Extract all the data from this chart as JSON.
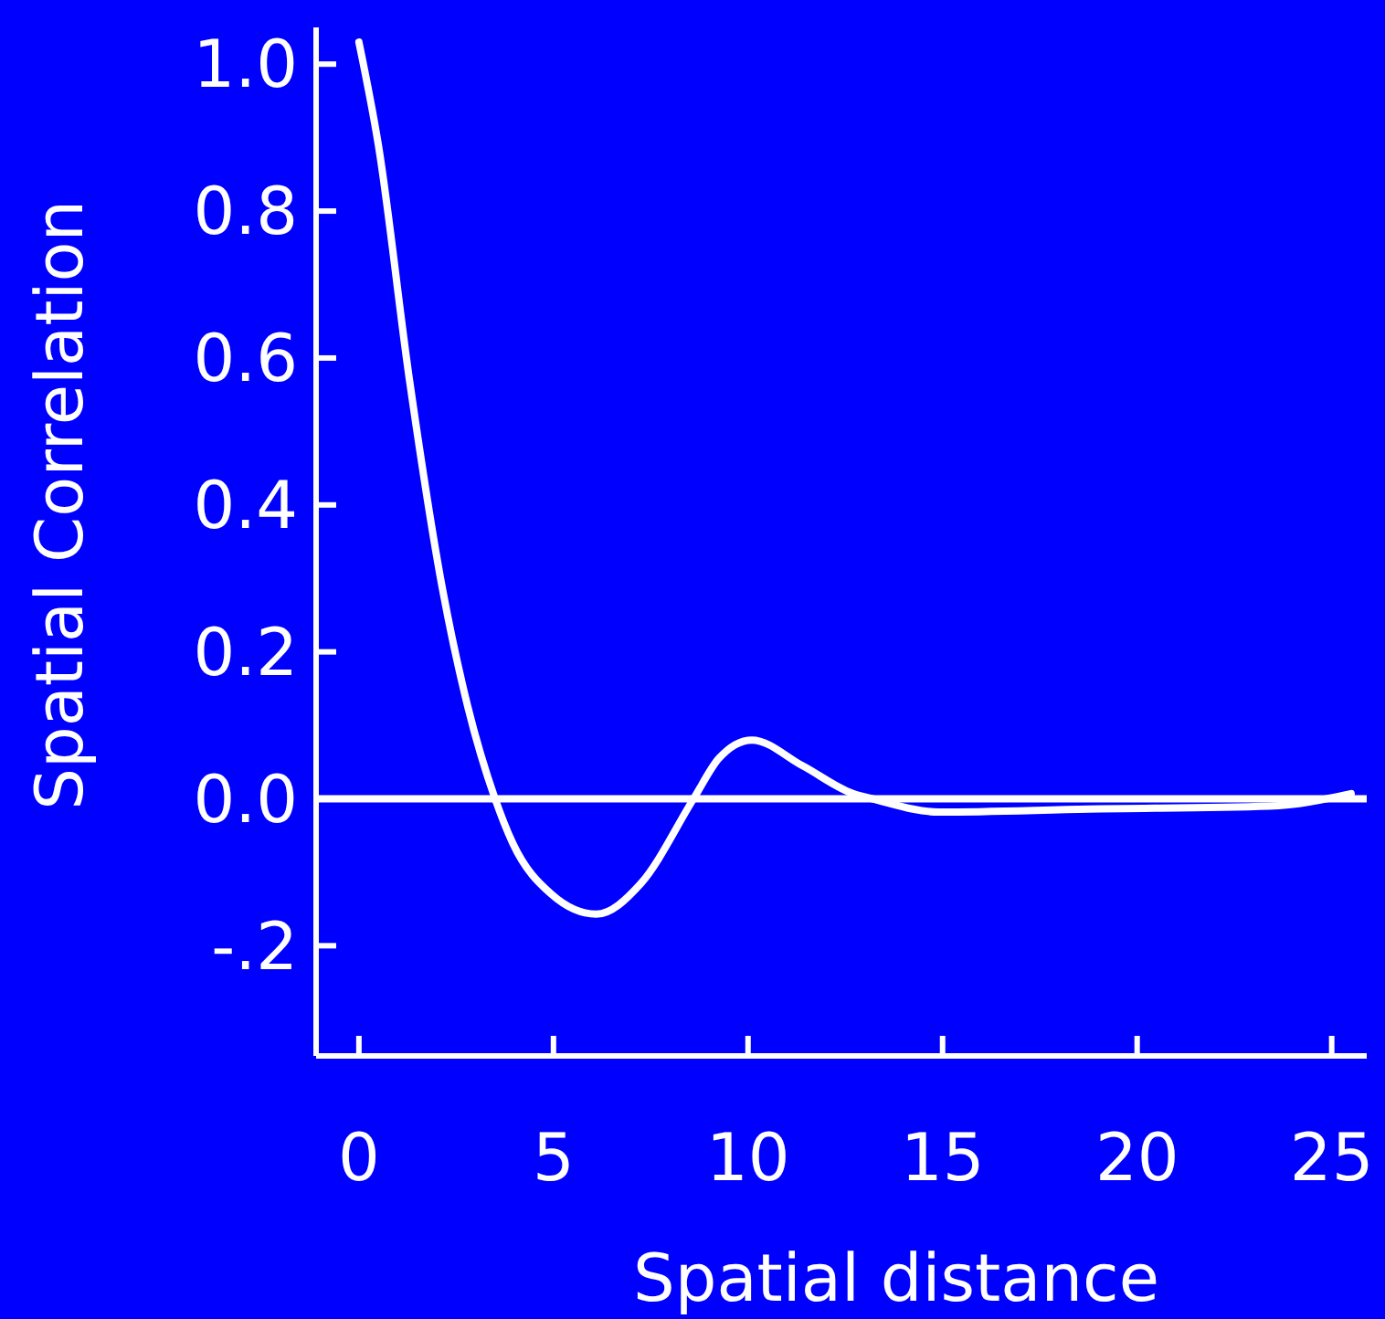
{
  "chart_data": {
    "type": "line",
    "xlabel": "Spatial distance",
    "ylabel": "Spatial Correlation",
    "x": [
      0,
      0.5,
      1.3,
      2.15,
      2.8,
      3.5,
      3.95,
      4.95,
      6.1,
      7.25,
      8.6,
      9.25,
      10.1,
      11.4,
      12.7,
      13.2,
      14.9,
      18.75,
      23.4,
      25.5
    ],
    "series": [
      {
        "color": "#ffffff",
        "values": [
          1.03,
          0.89,
          0.57,
          0.285,
          0.125,
          0,
          -0.06,
          -0.13,
          -0.157,
          -0.115,
          0,
          0.055,
          0.08,
          0.045,
          0.007,
          0,
          -0.018,
          -0.014,
          -0.01,
          0.007
        ]
      }
    ],
    "xlim": [
      -1.1,
      25.9
    ],
    "xticks": [
      0,
      5,
      10,
      15,
      20,
      25
    ],
    "ylim": [
      -0.35,
      1.05
    ],
    "yticks": [
      {
        "value": 1,
        "label": "1.0"
      },
      {
        "value": 0.8,
        "label": "0.8"
      },
      {
        "value": 0.6,
        "label": "0.6"
      },
      {
        "value": 0.4,
        "label": "0.4"
      },
      {
        "value": 0.2,
        "label": "0.2"
      },
      {
        "value": 0,
        "label": "0.0"
      },
      {
        "value": -0.2,
        "label": "-.2"
      }
    ],
    "ref_lines": [
      {
        "axis": "y",
        "value": 0,
        "color": "#ffffff"
      }
    ],
    "grid": false,
    "marker": "none",
    "line_style": "solid"
  }
}
